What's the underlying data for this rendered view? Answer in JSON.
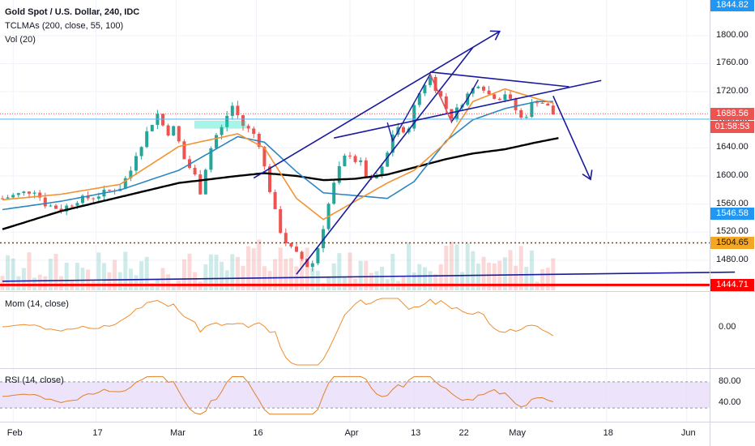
{
  "legend": {
    "title": "Gold Spot / U.S. Dollar, 240, IDC",
    "indicator_ma": "TCLMAs (200, close, 55, 100)",
    "indicator_vol": "Vol (20)",
    "mom_label": "Mom (14, close)",
    "rsi_label": "RSI (14, close)"
  },
  "price_tags": {
    "top": "1844.82",
    "last": "1688.56",
    "countdown": "01:58:53",
    "blue": "1546.58",
    "dotted": "1504.65",
    "red": "1444.71"
  },
  "colors": {
    "candle_up": "#26a69a",
    "candle_down": "#ef5350",
    "ma_orange": "#f29333",
    "ma_blue": "#2e86c1",
    "ma_black": "#000000",
    "trendline": "#1a1a9e",
    "mom": "#f08c2c",
    "rsi": "#e0802a",
    "rsi_band": "#e8dcf9",
    "hline_blue": "#5eb8e6",
    "hline_red": "#ff0000",
    "hline_dotted": "#8b3a0e",
    "tag_blue": "#2196f3",
    "tag_red": "#ff0000",
    "tag_last": "#ef5350",
    "tag_orange": "#f5a623"
  },
  "chart_data": {
    "type": "candlestick",
    "x_tick_labels": [
      "Feb",
      "17",
      "Mar",
      "16",
      "Apr",
      "13",
      "22",
      "May",
      "18",
      "Jun"
    ],
    "y_tick_labels": [
      "1800.00",
      "1760.00",
      "1720.00",
      "1680.00",
      "1640.00",
      "1600.00",
      "1560.00",
      "1520.00",
      "1480.00"
    ],
    "ylim": [
      1444,
      1846
    ],
    "close_path": [
      [
        0,
        1568
      ],
      [
        3,
        1574
      ],
      [
        6,
        1580
      ],
      [
        8,
        1560
      ],
      [
        11,
        1552
      ],
      [
        14,
        1566
      ],
      [
        17,
        1570
      ],
      [
        19,
        1576
      ],
      [
        22,
        1584
      ],
      [
        24,
        1608
      ],
      [
        25,
        1632
      ],
      [
        26,
        1646
      ],
      [
        27,
        1662
      ],
      [
        28,
        1676
      ],
      [
        29,
        1688
      ],
      [
        30,
        1672
      ],
      [
        31,
        1662
      ],
      [
        32,
        1668
      ],
      [
        33,
        1648
      ],
      [
        34,
        1624
      ],
      [
        35,
        1612
      ],
      [
        36,
        1600
      ],
      [
        37,
        1578
      ],
      [
        38,
        1612
      ],
      [
        39,
        1640
      ],
      [
        40,
        1658
      ],
      [
        41,
        1668
      ],
      [
        42,
        1686
      ],
      [
        43,
        1700
      ],
      [
        44,
        1686
      ],
      [
        45,
        1672
      ],
      [
        46,
        1666
      ],
      [
        47,
        1660
      ],
      [
        48,
        1646
      ],
      [
        49,
        1612
      ],
      [
        50,
        1580
      ],
      [
        51,
        1548
      ],
      [
        52,
        1522
      ],
      [
        53,
        1506
      ],
      [
        54,
        1496
      ],
      [
        55,
        1488
      ],
      [
        56,
        1482
      ],
      [
        57,
        1472
      ],
      [
        58,
        1476
      ],
      [
        59,
        1498
      ],
      [
        60,
        1528
      ],
      [
        61,
        1560
      ],
      [
        62,
        1588
      ],
      [
        63,
        1610
      ],
      [
        64,
        1626
      ],
      [
        65,
        1632
      ],
      [
        66,
        1622
      ],
      [
        67,
        1618
      ],
      [
        68,
        1600
      ],
      [
        69,
        1592
      ],
      [
        70,
        1600
      ],
      [
        71,
        1610
      ],
      [
        72,
        1632
      ],
      [
        73,
        1660
      ],
      [
        74,
        1670
      ],
      [
        75,
        1658
      ],
      [
        76,
        1672
      ],
      [
        77,
        1698
      ],
      [
        78,
        1718
      ],
      [
        79,
        1732
      ],
      [
        80,
        1740
      ],
      [
        81,
        1726
      ],
      [
        82,
        1712
      ],
      [
        83,
        1696
      ],
      [
        84,
        1684
      ],
      [
        85,
        1694
      ],
      [
        86,
        1706
      ],
      [
        87,
        1716
      ],
      [
        88,
        1724
      ],
      [
        89,
        1732
      ],
      [
        90,
        1726
      ],
      [
        91,
        1716
      ],
      [
        92,
        1714
      ],
      [
        93,
        1712
      ],
      [
        94,
        1718
      ],
      [
        95,
        1706
      ],
      [
        96,
        1694
      ],
      [
        97,
        1682
      ],
      [
        98,
        1688
      ],
      [
        99,
        1702
      ],
      [
        100,
        1708
      ],
      [
        101,
        1704
      ],
      [
        102,
        1698
      ],
      [
        103,
        1688
      ]
    ],
    "ma_200": [
      [
        0,
        1524
      ],
      [
        11,
        1550
      ],
      [
        22,
        1570
      ],
      [
        33,
        1590
      ],
      [
        44,
        1600
      ],
      [
        49,
        1604
      ],
      [
        55,
        1600
      ],
      [
        60,
        1594
      ],
      [
        66,
        1596
      ],
      [
        72,
        1602
      ],
      [
        77,
        1612
      ],
      [
        83,
        1624
      ],
      [
        88,
        1632
      ],
      [
        94,
        1638
      ],
      [
        100,
        1648
      ],
      [
        104,
        1654
      ]
    ],
    "ma_100": [
      [
        0,
        1552
      ],
      [
        11,
        1564
      ],
      [
        22,
        1580
      ],
      [
        33,
        1608
      ],
      [
        44,
        1656
      ],
      [
        49,
        1648
      ],
      [
        55,
        1606
      ],
      [
        60,
        1576
      ],
      [
        66,
        1572
      ],
      [
        72,
        1568
      ],
      [
        77,
        1592
      ],
      [
        83,
        1650
      ],
      [
        88,
        1680
      ],
      [
        94,
        1696
      ],
      [
        100,
        1706
      ],
      [
        103,
        1706
      ]
    ],
    "ma_55": [
      [
        0,
        1566
      ],
      [
        11,
        1574
      ],
      [
        22,
        1588
      ],
      [
        33,
        1642
      ],
      [
        44,
        1660
      ],
      [
        49,
        1640
      ],
      [
        55,
        1568
      ],
      [
        60,
        1538
      ],
      [
        66,
        1564
      ],
      [
        72,
        1590
      ],
      [
        77,
        1608
      ],
      [
        83,
        1648
      ],
      [
        88,
        1706
      ],
      [
        94,
        1724
      ],
      [
        100,
        1710
      ],
      [
        103,
        1704
      ]
    ],
    "mom_ylim": [
      -0.5,
      0.5
    ],
    "mom_tick": "0.00",
    "rsi_ylim": [
      10,
      100
    ],
    "rsi_ticks": [
      "80.00",
      "40.00"
    ],
    "rsi_band": [
      30,
      80
    ],
    "trendlines": [
      {
        "from": [
          47,
          1597
        ],
        "to": [
          93,
          1806
        ]
      },
      {
        "from": [
          55,
          1460
        ],
        "to": [
          88,
          1783
        ]
      },
      {
        "from": [
          62,
          1654
        ],
        "to": [
          112,
          1736
        ]
      },
      {
        "from": [
          80,
          1748
        ],
        "to": [
          106,
          1727
        ]
      },
      {
        "from": [
          0,
          1450
        ],
        "to": [
          137,
          1463
        ]
      },
      {
        "from": [
          103,
          1714
        ],
        "to": [
          110,
          1595
        ]
      }
    ],
    "hlines": [
      1688.56,
      1681,
      1504.65,
      1444.71
    ]
  }
}
